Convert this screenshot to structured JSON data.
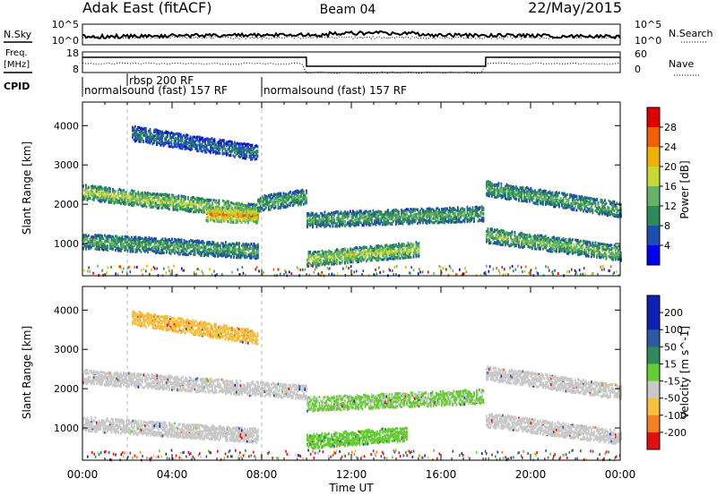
{
  "header": {
    "radar_title": "Adak East (fitACF)",
    "beam": "Beam 04",
    "date": "22/May/2015"
  },
  "sky_panel": {
    "left_label": "N.Sky",
    "left_ticks": [
      "10^5",
      "10^0"
    ],
    "right_ticks": [
      "10^5",
      "10^0"
    ],
    "right_label": "N.Search"
  },
  "freq_panel": {
    "left_label_line1": "Freq.",
    "left_label_line2": "[MHz]",
    "left_ticks": [
      "18",
      "8"
    ],
    "right_ticks": [
      "60",
      "0"
    ],
    "right_label": "Nave"
  },
  "cpid": {
    "label": "CPID",
    "programs": [
      {
        "name": "normalsound (fast) 157 RF",
        "start_hour": 0,
        "end_hour": 8
      },
      {
        "name": "rbsp 200 RF",
        "start_hour": 1.3,
        "end_hour": 1.4
      },
      {
        "name": "normalsound (fast) 157 RF",
        "start_hour": 8,
        "end_hour": 24
      }
    ]
  },
  "time_axis": {
    "label": "Time UT",
    "ticks": [
      "00:00",
      "04:00",
      "08:00",
      "12:00",
      "16:00",
      "20:00",
      "00:00"
    ]
  },
  "power_panel": {
    "ylabel": "Slant Range [km]",
    "yticks": [
      "4000",
      "3000",
      "2000",
      "1000"
    ],
    "colorbar_label": "Power [dB]",
    "colorbar_ticks": [
      "28",
      "24",
      "20",
      "16",
      "12",
      "8",
      "4"
    ],
    "colors": [
      "#0000ee",
      "#1e4fb0",
      "#2e8b57",
      "#66b266",
      "#c8d832",
      "#f0b000",
      "#f06000",
      "#e00000"
    ]
  },
  "velocity_panel": {
    "ylabel": "Slant Range [km]",
    "yticks": [
      "4000",
      "3000",
      "2000",
      "1000"
    ],
    "colorbar_label": "Velocity [m s^-1]",
    "colorbar_ticks": [
      "200",
      "100",
      "50",
      "15",
      "-15",
      "-50",
      "-100",
      "-200"
    ],
    "colors": [
      "#1020b0",
      "#2c5aa0",
      "#2e8b57",
      "#66cc33",
      "#c8c8c8",
      "#f5c040",
      "#f08020",
      "#e01010"
    ]
  },
  "chart_data": [
    {
      "type": "heatmap",
      "title": "Power",
      "xlabel": "Time UT",
      "ylabel": "Slant Range [km]",
      "xlim": [
        0,
        24
      ],
      "ylim": [
        180,
        4600
      ],
      "colorbar_range": [
        0,
        32
      ],
      "bands": [
        {
          "start_hour": 2.2,
          "end_hour": 7.8,
          "range_start_km": 3800,
          "range_end_km": 3300,
          "power_db": 8
        },
        {
          "start_hour": 0.0,
          "end_hour": 7.8,
          "range_start_km": 2300,
          "range_end_km": 1800,
          "power_db": 16
        },
        {
          "start_hour": 5.5,
          "end_hour": 7.8,
          "range_start_km": 1750,
          "range_end_km": 1700,
          "power_db": 22
        },
        {
          "start_hour": 7.8,
          "end_hour": 10.0,
          "range_start_km": 2000,
          "range_end_km": 2200,
          "power_db": 12
        },
        {
          "start_hour": 10.0,
          "end_hour": 17.9,
          "range_start_km": 1600,
          "range_end_km": 1750,
          "power_db": 12
        },
        {
          "start_hour": 18.0,
          "end_hour": 24.0,
          "range_start_km": 2400,
          "range_end_km": 1850,
          "power_db": 12
        },
        {
          "start_hour": 0.0,
          "end_hour": 7.8,
          "range_start_km": 1050,
          "range_end_km": 800,
          "power_db": 12
        },
        {
          "start_hour": 10.0,
          "end_hour": 15.0,
          "range_start_km": 600,
          "range_end_km": 850,
          "power_db": 16
        },
        {
          "start_hour": 18.0,
          "end_hour": 24.0,
          "range_start_km": 1200,
          "range_end_km": 750,
          "power_db": 14
        }
      ]
    },
    {
      "type": "heatmap",
      "title": "Velocity",
      "xlabel": "Time UT",
      "ylabel": "Slant Range [km]",
      "xlim": [
        0,
        24
      ],
      "ylim": [
        180,
        4600
      ],
      "colorbar_range": [
        -250,
        250
      ],
      "bands": [
        {
          "start_hour": 2.2,
          "end_hour": 7.8,
          "range_start_km": 3800,
          "range_end_km": 3300,
          "velocity_ms": -40
        },
        {
          "start_hour": 0.0,
          "end_hour": 10.0,
          "range_start_km": 2300,
          "range_end_km": 1900,
          "velocity_ms": 0
        },
        {
          "start_hour": 10.0,
          "end_hour": 17.9,
          "range_start_km": 1600,
          "range_end_km": 1800,
          "velocity_ms": 20
        },
        {
          "start_hour": 18.0,
          "end_hour": 24.0,
          "range_start_km": 2400,
          "range_end_km": 1900,
          "velocity_ms": 0
        },
        {
          "start_hour": 0.0,
          "end_hour": 7.8,
          "range_start_km": 1100,
          "range_end_km": 800,
          "velocity_ms": 0
        },
        {
          "start_hour": 10.0,
          "end_hour": 14.5,
          "range_start_km": 650,
          "range_end_km": 850,
          "velocity_ms": 40
        },
        {
          "start_hour": 18.0,
          "end_hour": 24.0,
          "range_start_km": 1200,
          "range_end_km": 750,
          "velocity_ms": 0
        }
      ]
    }
  ]
}
